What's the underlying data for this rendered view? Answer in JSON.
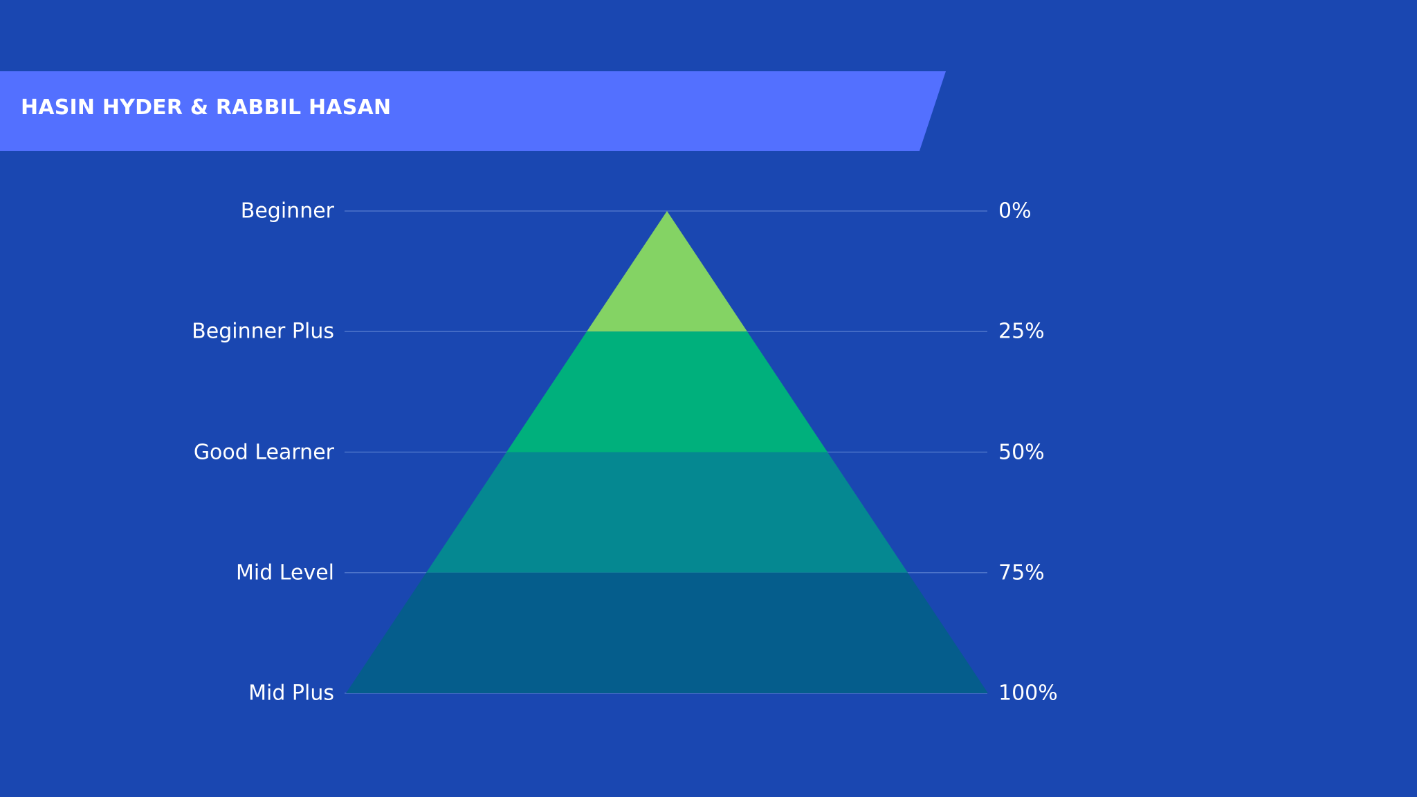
{
  "banner": {
    "title": "HASIN HYDER & RABBIL HASAN",
    "color": "#5370ff"
  },
  "background_color": "#1a47b1",
  "pyramid": {
    "levels": [
      {
        "label": "Beginner",
        "percent": "0%"
      },
      {
        "label": "Beginner Plus",
        "percent": "25%"
      },
      {
        "label": "Good Learner",
        "percent": "50%"
      },
      {
        "label": "Mid Level",
        "percent": "75%"
      },
      {
        "label": "Mid Plus",
        "percent": "100%"
      }
    ],
    "band_colors": [
      "#84d364",
      "#00b07c",
      "#058891",
      "#055d8c"
    ],
    "guide_line_color": "#4c73c9"
  }
}
